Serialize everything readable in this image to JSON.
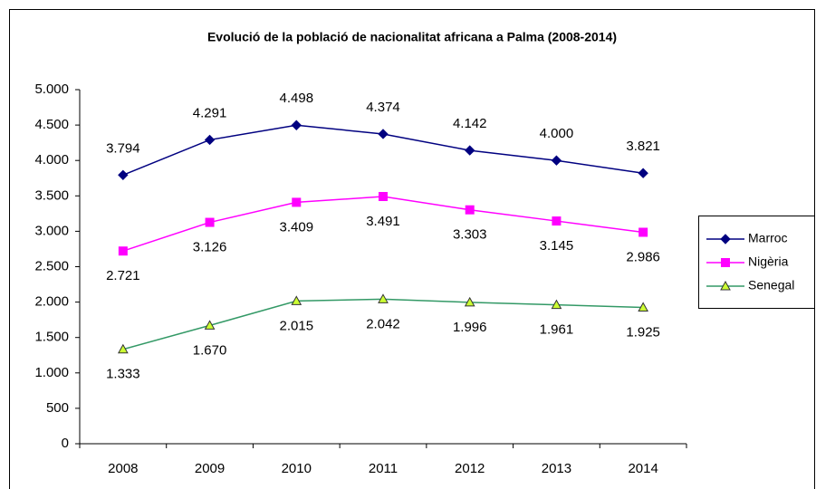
{
  "chart_data": {
    "type": "line",
    "title": "Evolució de la població de nacionalitat africana a Palma (2008-2014)",
    "categories": [
      "2008",
      "2009",
      "2010",
      "2011",
      "2012",
      "2013",
      "2014"
    ],
    "series": [
      {
        "name": "Marroc",
        "color": "#000080",
        "marker": "diamond",
        "marker_fill": "#000080",
        "label_position": "above",
        "values": [
          3794,
          4291,
          4498,
          4374,
          4142,
          4000,
          3821
        ],
        "value_labels": [
          "3.794",
          "4.291",
          "4.498",
          "4.374",
          "4.142",
          "4.000",
          "3.821"
        ]
      },
      {
        "name": "Nigèria",
        "color": "#ff00ff",
        "marker": "square",
        "marker_fill": "#ff00ff",
        "label_position": "below",
        "values": [
          2721,
          3126,
          3409,
          3491,
          3303,
          3145,
          2986
        ],
        "value_labels": [
          "2.721",
          "3.126",
          "3.409",
          "3.491",
          "3.303",
          "3.145",
          "2.986"
        ]
      },
      {
        "name": "Senegal",
        "color": "#339966",
        "marker": "triangle",
        "marker_fill": "#ccff33",
        "label_position": "below",
        "values": [
          1333,
          1670,
          2015,
          2042,
          1996,
          1961,
          1925
        ],
        "value_labels": [
          "1.333",
          "1.670",
          "2.015",
          "2.042",
          "1.996",
          "1.961",
          "1.925"
        ]
      }
    ],
    "ylim": [
      0,
      5000
    ],
    "yticks": [
      0,
      500,
      {
        "value": 1000,
        "label": "1.000"
      },
      {
        "value": 1500,
        "label": "1.500"
      },
      {
        "value": 2000,
        "label": "2.000"
      },
      {
        "value": 2500,
        "label": "2.500"
      },
      {
        "value": 3000,
        "label": "3.000"
      },
      {
        "value": 3500,
        "label": "3.500"
      },
      {
        "value": 4000,
        "label": "4.000"
      },
      {
        "value": 4500,
        "label": "4.500"
      },
      {
        "value": 5000,
        "label": "5.000"
      }
    ],
    "grid": false,
    "legend": "right"
  }
}
